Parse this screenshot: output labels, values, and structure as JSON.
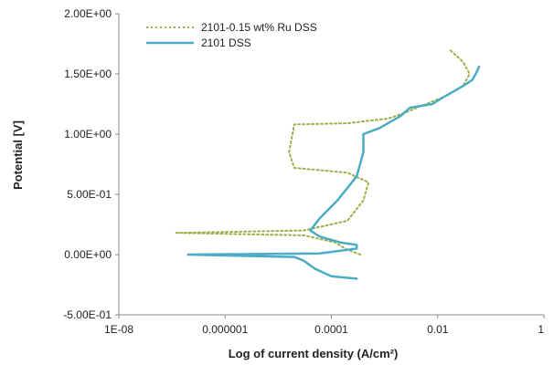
{
  "chart_data": {
    "type": "line",
    "title": "",
    "xlabel": "Log of current density (A/cm²)",
    "ylabel": "Potential [V]",
    "xscale": "log",
    "xlim": [
      1e-08,
      1
    ],
    "ylim": [
      -0.5,
      2.0
    ],
    "x_tick_labels": [
      "1E-08",
      "0.000001",
      "0.0001",
      "0.01",
      "1"
    ],
    "y_tick_labels": [
      "-5.00E-01",
      "0.00E+00",
      "5.00E-01",
      "1.00E+00",
      "1.50E+00",
      "2.00E+00"
    ],
    "y_ticks": [
      -0.5,
      0,
      0.5,
      1.0,
      1.5,
      2.0
    ],
    "x_ticks": [
      1e-08,
      1e-06,
      0.0001,
      0.01,
      1
    ],
    "grid": false,
    "legend_position": "top-left",
    "series": [
      {
        "name": "2101-0.15 wt% Ru DSS",
        "style": "dotted",
        "color": "#9ab04a",
        "points": [
          [
            0.00035,
            0.0
          ],
          [
            0.00018,
            0.05
          ],
          [
            0.00012,
            0.1
          ],
          [
            3e-05,
            0.16
          ],
          [
            1.2e-07,
            0.18
          ],
          [
            3e-05,
            0.2
          ],
          [
            0.0002,
            0.28
          ],
          [
            0.0004,
            0.45
          ],
          [
            0.0005,
            0.6
          ],
          [
            0.0002,
            0.68
          ],
          [
            2e-05,
            0.72
          ],
          [
            1.6e-05,
            0.85
          ],
          [
            2e-05,
            1.08
          ],
          [
            0.0002,
            1.09
          ],
          [
            0.0012,
            1.13
          ],
          [
            0.0025,
            1.18
          ],
          [
            0.006,
            1.25
          ],
          [
            0.015,
            1.32
          ],
          [
            0.03,
            1.4
          ],
          [
            0.04,
            1.5
          ],
          [
            0.03,
            1.6
          ],
          [
            0.017,
            1.7
          ]
        ]
      },
      {
        "name": "2101 DSS",
        "style": "solid",
        "color": "#4bacc6",
        "points": [
          [
            0.0003,
            -0.2
          ],
          [
            0.0001,
            -0.18
          ],
          [
            5e-05,
            -0.12
          ],
          [
            3e-05,
            -0.05
          ],
          [
            2e-05,
            -0.02
          ],
          [
            2e-07,
            0.0
          ],
          [
            6e-05,
            0.01
          ],
          [
            0.0003,
            0.05
          ],
          [
            0.0003,
            0.08
          ],
          [
            0.00015,
            0.1
          ],
          [
            6e-05,
            0.15
          ],
          [
            4e-05,
            0.2
          ],
          [
            6e-05,
            0.3
          ],
          [
            0.00013,
            0.45
          ],
          [
            0.0003,
            0.65
          ],
          [
            0.0004,
            0.85
          ],
          [
            0.0004,
            1.0
          ],
          [
            0.0008,
            1.05
          ],
          [
            0.002,
            1.15
          ],
          [
            0.003,
            1.22
          ],
          [
            0.008,
            1.25
          ],
          [
            0.012,
            1.3
          ],
          [
            0.03,
            1.4
          ],
          [
            0.045,
            1.45
          ],
          [
            0.055,
            1.52
          ],
          [
            0.06,
            1.56
          ]
        ]
      }
    ]
  }
}
